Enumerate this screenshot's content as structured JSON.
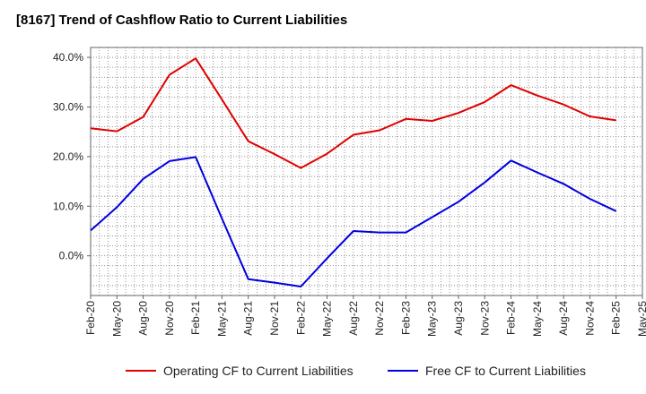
{
  "chart_data": {
    "type": "line",
    "title": "[8167]  Trend of Cashflow Ratio to Current Liabilities",
    "xlabel": "",
    "ylabel": "",
    "categories": [
      "Feb-20",
      "May-20",
      "Aug-20",
      "Nov-20",
      "Feb-21",
      "May-21",
      "Aug-21",
      "Nov-21",
      "Feb-22",
      "May-22",
      "Aug-22",
      "Nov-22",
      "Feb-23",
      "May-23",
      "Aug-23",
      "Nov-23",
      "Feb-24",
      "May-24",
      "Aug-24",
      "Nov-24",
      "Feb-25",
      "May-25"
    ],
    "y_ticks": [
      "0.0%",
      "10.0%",
      "20.0%",
      "30.0%",
      "40.0%"
    ],
    "ylim": [
      -8,
      42
    ],
    "grid": true,
    "legend_position": "bottom",
    "series": [
      {
        "name": "Operating CF to Current Liabilities",
        "color": "#e00000",
        "values": [
          25.7,
          25.1,
          28.0,
          36.5,
          39.8,
          31.5,
          23.1,
          20.5,
          17.7,
          20.6,
          24.4,
          25.3,
          27.6,
          27.2,
          28.8,
          31.0,
          34.4,
          32.3,
          30.5,
          28.1,
          27.3,
          null
        ]
      },
      {
        "name": "Free CF to Current Liabilities",
        "color": "#0000e0",
        "values": [
          5.1,
          9.8,
          15.5,
          19.1,
          19.9,
          7.5,
          -4.7,
          -5.4,
          -6.2,
          -0.5,
          5.0,
          4.7,
          4.7,
          7.8,
          10.9,
          14.8,
          19.2,
          16.8,
          14.5,
          11.5,
          9.0,
          null
        ]
      }
    ]
  }
}
